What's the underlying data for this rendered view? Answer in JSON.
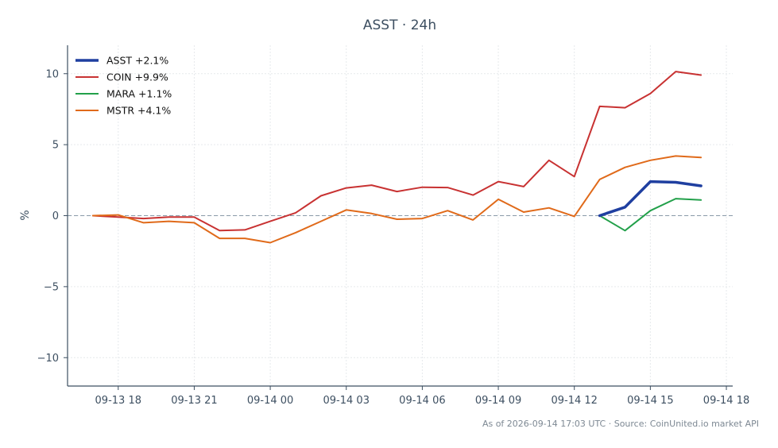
{
  "chart_data": {
    "type": "line",
    "title": "ASST · 24h",
    "xlabel": "",
    "ylabel": "%",
    "xlim": [
      "2026-09-13 16:00",
      "2026-09-14 18:15"
    ],
    "ylim": [
      -12,
      12
    ],
    "x_tick_labels": [
      "09-13 18",
      "09-13 21",
      "09-14 00",
      "09-14 03",
      "09-14 06",
      "09-14 09",
      "09-14 12",
      "09-14 15",
      "09-14 18"
    ],
    "x_tick_values": [
      "2026-09-13 18:00",
      "2026-09-13 21:00",
      "2026-09-14 00:00",
      "2026-09-14 03:00",
      "2026-09-14 06:00",
      "2026-09-14 09:00",
      "2026-09-14 12:00",
      "2026-09-14 15:00",
      "2026-09-14 18:00"
    ],
    "y_ticks": [
      -10,
      -5,
      0,
      5,
      10
    ],
    "y_tick_labels": [
      "−10",
      "−5",
      "0",
      "5",
      "10"
    ],
    "grid": true,
    "zero_line": true,
    "legend_position": "top-left",
    "series": [
      {
        "name": "ASST +2.1%",
        "color": "#1f3fa0",
        "width": 3.5,
        "x": [
          "2026-09-14 13:00",
          "2026-09-14 14:00",
          "2026-09-14 15:00",
          "2026-09-14 16:00",
          "2026-09-14 17:00"
        ],
        "values": [
          0.0,
          0.6,
          2.4,
          2.35,
          2.1
        ]
      },
      {
        "name": "COIN +9.9%",
        "color": "#c83232",
        "width": 2,
        "x": [
          "2026-09-13 17:00",
          "2026-09-13 18:00",
          "2026-09-13 19:00",
          "2026-09-13 20:00",
          "2026-09-13 21:00",
          "2026-09-13 22:00",
          "2026-09-13 23:00",
          "2026-09-14 00:00",
          "2026-09-14 01:00",
          "2026-09-14 02:00",
          "2026-09-14 03:00",
          "2026-09-14 04:00",
          "2026-09-14 05:00",
          "2026-09-14 06:00",
          "2026-09-14 07:00",
          "2026-09-14 08:00",
          "2026-09-14 09:00",
          "2026-09-14 10:00",
          "2026-09-14 11:00",
          "2026-09-14 12:00",
          "2026-09-14 13:00",
          "2026-09-14 14:00",
          "2026-09-14 15:00",
          "2026-09-14 16:00",
          "2026-09-14 17:00"
        ],
        "values": [
          0.0,
          -0.1,
          -0.2,
          -0.1,
          -0.1,
          -1.05,
          -1.0,
          -0.4,
          0.2,
          1.4,
          1.95,
          2.15,
          1.7,
          2.0,
          1.98,
          1.45,
          2.4,
          2.05,
          3.9,
          2.75,
          7.7,
          7.6,
          8.6,
          10.15,
          9.9
        ]
      },
      {
        "name": "MARA +1.1%",
        "color": "#22a04a",
        "width": 2,
        "x": [
          "2026-09-14 13:00",
          "2026-09-14 14:00",
          "2026-09-14 15:00",
          "2026-09-14 16:00",
          "2026-09-14 17:00"
        ],
        "values": [
          0.0,
          -1.05,
          0.35,
          1.2,
          1.1
        ]
      },
      {
        "name": "MSTR +4.1%",
        "color": "#e06a1a",
        "width": 2,
        "x": [
          "2026-09-13 17:00",
          "2026-09-13 18:00",
          "2026-09-13 19:00",
          "2026-09-13 20:00",
          "2026-09-13 21:00",
          "2026-09-13 22:00",
          "2026-09-13 23:00",
          "2026-09-14 00:00",
          "2026-09-14 01:00",
          "2026-09-14 02:00",
          "2026-09-14 03:00",
          "2026-09-14 04:00",
          "2026-09-14 05:00",
          "2026-09-14 06:00",
          "2026-09-14 07:00",
          "2026-09-14 08:00",
          "2026-09-14 09:00",
          "2026-09-14 10:00",
          "2026-09-14 11:00",
          "2026-09-14 12:00",
          "2026-09-14 13:00",
          "2026-09-14 14:00",
          "2026-09-14 15:00",
          "2026-09-14 16:00",
          "2026-09-14 17:00"
        ],
        "values": [
          0.0,
          0.05,
          -0.5,
          -0.4,
          -0.5,
          -1.6,
          -1.6,
          -1.9,
          -1.2,
          -0.4,
          0.4,
          0.15,
          -0.25,
          -0.2,
          0.35,
          -0.3,
          1.15,
          0.25,
          0.55,
          -0.05,
          2.55,
          3.4,
          3.9,
          4.2,
          4.1
        ]
      }
    ],
    "footer": "As of 2026-09-14 17:03 UTC · Source: CoinUnited.io market API"
  }
}
